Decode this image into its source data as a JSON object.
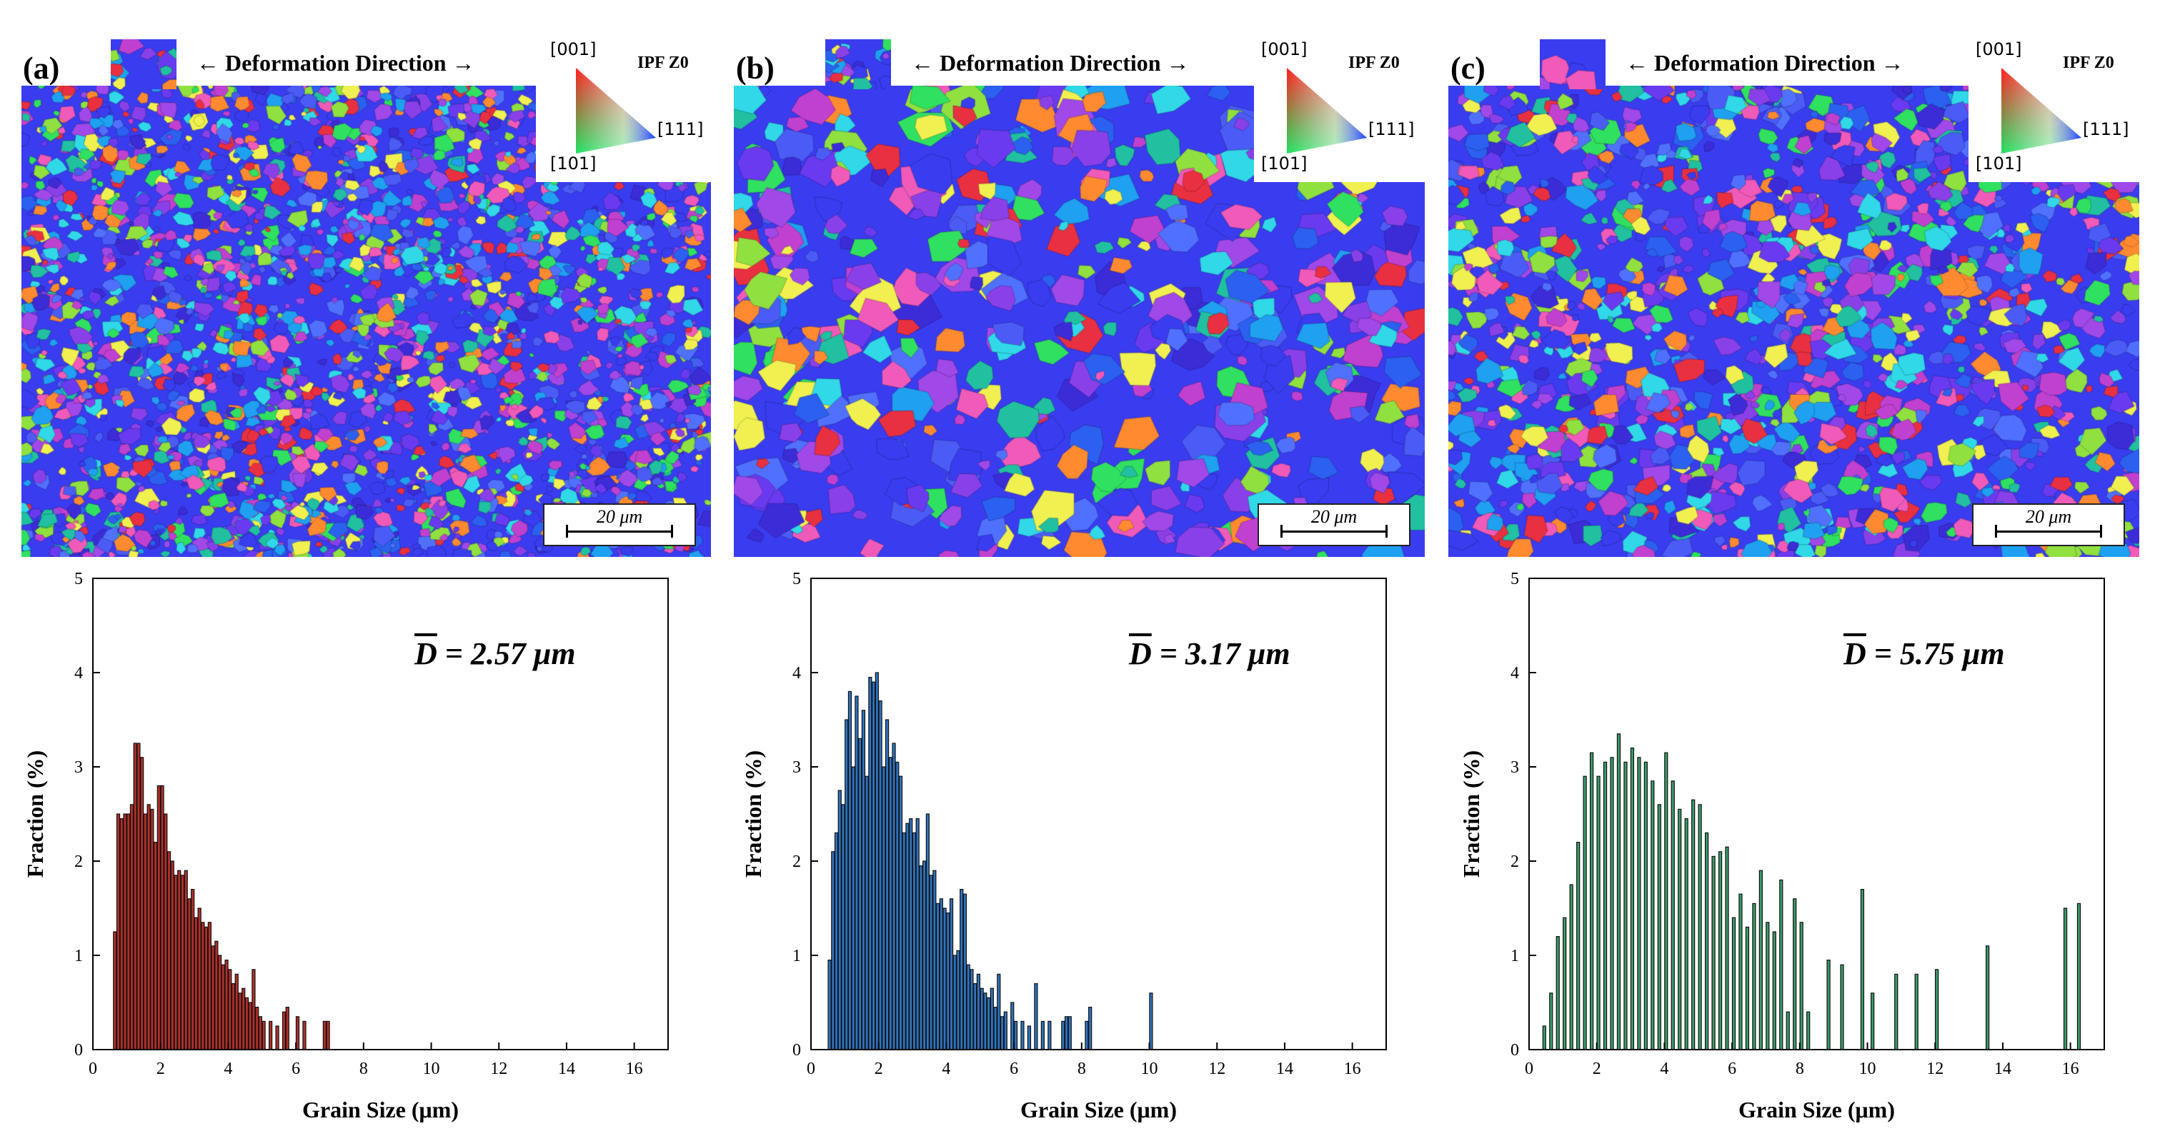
{
  "figure": {
    "direction_label": "← Deformation Direction →",
    "ipf": {
      "title": "IPF Z0",
      "dir_001": "[001]",
      "dir_101": "[101]",
      "dir_111": "[111]"
    },
    "scale_bar_label": "20 μm",
    "panels": [
      {
        "label": "(a)",
        "mean_label": "= 2.57 μm",
        "mean_symbol": "D"
      },
      {
        "label": "(b)",
        "mean_label": "= 3.17 μm",
        "mean_symbol": "D"
      },
      {
        "label": "(c)",
        "mean_label": "= 5.75 μm",
        "mean_symbol": "D"
      }
    ]
  },
  "chart_data": [
    {
      "type": "bar",
      "panel": "(a)",
      "xlabel": "Grain Size (μm)",
      "ylabel": "Fraction (%)",
      "xlim": [
        0,
        17
      ],
      "ylim": [
        0,
        5
      ],
      "xticks": [
        0,
        2,
        4,
        6,
        8,
        10,
        12,
        14,
        16
      ],
      "yticks": [
        0,
        1,
        2,
        3,
        4,
        5
      ],
      "color": "#b2302a",
      "mean_grain_size": 2.57,
      "x": [
        0.65,
        0.75,
        0.85,
        0.95,
        1.05,
        1.15,
        1.25,
        1.35,
        1.45,
        1.55,
        1.65,
        1.75,
        1.85,
        1.95,
        2.05,
        2.15,
        2.25,
        2.35,
        2.45,
        2.55,
        2.65,
        2.75,
        2.85,
        2.95,
        3.05,
        3.15,
        3.25,
        3.35,
        3.45,
        3.55,
        3.65,
        3.75,
        3.85,
        3.95,
        4.05,
        4.15,
        4.25,
        4.35,
        4.45,
        4.55,
        4.65,
        4.75,
        4.85,
        4.95,
        5.05,
        5.25,
        5.45,
        5.65,
        5.75,
        6.05,
        6.25,
        6.85,
        6.95
      ],
      "values": [
        1.25,
        2.5,
        2.45,
        2.5,
        2.5,
        2.6,
        3.25,
        3.25,
        3.1,
        2.5,
        2.6,
        2.55,
        2.2,
        2.8,
        2.8,
        2.5,
        2.1,
        2.0,
        1.85,
        1.9,
        1.85,
        1.9,
        1.6,
        1.7,
        1.4,
        1.5,
        1.35,
        1.3,
        1.35,
        1.1,
        1.15,
        1.0,
        0.9,
        0.95,
        0.85,
        0.7,
        0.8,
        0.6,
        0.65,
        0.55,
        0.5,
        0.85,
        0.45,
        0.35,
        0.3,
        0.3,
        0.25,
        0.4,
        0.45,
        0.35,
        0.3,
        0.3,
        0.3
      ]
    },
    {
      "type": "bar",
      "panel": "(b)",
      "xlabel": "Grain Size (μm)",
      "ylabel": "Fraction (%)",
      "xlim": [
        0,
        17
      ],
      "ylim": [
        0,
        5
      ],
      "xticks": [
        0,
        2,
        4,
        6,
        8,
        10,
        12,
        14,
        16
      ],
      "yticks": [
        0,
        1,
        2,
        3,
        4,
        5
      ],
      "color": "#2f74c0",
      "mean_grain_size": 3.17,
      "x": [
        0.55,
        0.65,
        0.75,
        0.85,
        0.95,
        1.05,
        1.15,
        1.25,
        1.35,
        1.45,
        1.55,
        1.65,
        1.75,
        1.85,
        1.95,
        2.05,
        2.15,
        2.25,
        2.35,
        2.45,
        2.55,
        2.65,
        2.75,
        2.85,
        2.95,
        3.05,
        3.15,
        3.25,
        3.35,
        3.45,
        3.55,
        3.65,
        3.75,
        3.85,
        3.95,
        4.05,
        4.15,
        4.25,
        4.35,
        4.45,
        4.55,
        4.65,
        4.75,
        4.85,
        4.95,
        5.05,
        5.15,
        5.25,
        5.35,
        5.45,
        5.55,
        5.65,
        5.75,
        5.95,
        6.05,
        6.25,
        6.45,
        6.65,
        6.85,
        7.05,
        7.45,
        7.55,
        7.65,
        8.15,
        8.25,
        10.05
      ],
      "values": [
        0.95,
        2.1,
        2.3,
        2.75,
        2.6,
        3.5,
        3.8,
        3.0,
        3.75,
        3.3,
        3.6,
        2.9,
        3.95,
        3.9,
        4.0,
        3.7,
        3.0,
        3.5,
        3.1,
        3.25,
        3.05,
        2.9,
        2.3,
        2.4,
        2.45,
        2.3,
        2.45,
        1.95,
        2.0,
        2.5,
        1.85,
        1.9,
        1.55,
        1.6,
        1.5,
        1.45,
        1.6,
        1.0,
        1.05,
        1.7,
        1.65,
        0.9,
        0.85,
        0.7,
        0.8,
        0.65,
        0.6,
        0.55,
        0.65,
        0.45,
        0.8,
        0.35,
        0.4,
        0.5,
        0.3,
        0.3,
        0.25,
        0.7,
        0.3,
        0.3,
        0.3,
        0.35,
        0.35,
        0.3,
        0.45,
        0.6
      ]
    },
    {
      "type": "bar",
      "panel": "(c)",
      "xlabel": "Grain Size (μm)",
      "ylabel": "Fraction (%)",
      "xlim": [
        0,
        17
      ],
      "ylim": [
        0,
        5
      ],
      "xticks": [
        0,
        2,
        4,
        6,
        8,
        10,
        12,
        14,
        16
      ],
      "yticks": [
        0,
        1,
        2,
        3,
        4,
        5
      ],
      "color": "#3a9e6a",
      "mean_grain_size": 5.75,
      "x": [
        0.45,
        0.65,
        0.85,
        1.05,
        1.25,
        1.45,
        1.65,
        1.85,
        2.05,
        2.25,
        2.45,
        2.65,
        2.85,
        3.05,
        3.25,
        3.45,
        3.65,
        3.85,
        4.05,
        4.25,
        4.45,
        4.65,
        4.85,
        5.05,
        5.25,
        5.45,
        5.65,
        5.85,
        6.05,
        6.25,
        6.45,
        6.65,
        6.85,
        7.05,
        7.25,
        7.45,
        7.65,
        7.85,
        8.05,
        8.25,
        8.85,
        9.25,
        9.85,
        10.15,
        10.85,
        11.45,
        12.05,
        13.55,
        15.85,
        16.25
      ],
      "values": [
        0.25,
        0.6,
        1.2,
        1.4,
        1.75,
        2.2,
        2.9,
        3.15,
        2.9,
        3.05,
        3.1,
        3.35,
        3.05,
        3.2,
        3.1,
        3.05,
        2.85,
        2.6,
        3.15,
        2.85,
        2.55,
        2.45,
        2.65,
        2.6,
        2.3,
        2.05,
        2.1,
        2.15,
        1.4,
        1.65,
        1.3,
        1.55,
        1.9,
        1.35,
        1.25,
        1.8,
        0.4,
        1.6,
        1.35,
        0.4,
        0.95,
        0.9,
        1.7,
        0.6,
        0.8,
        0.8,
        0.85,
        1.1,
        1.5,
        1.55
      ]
    }
  ]
}
